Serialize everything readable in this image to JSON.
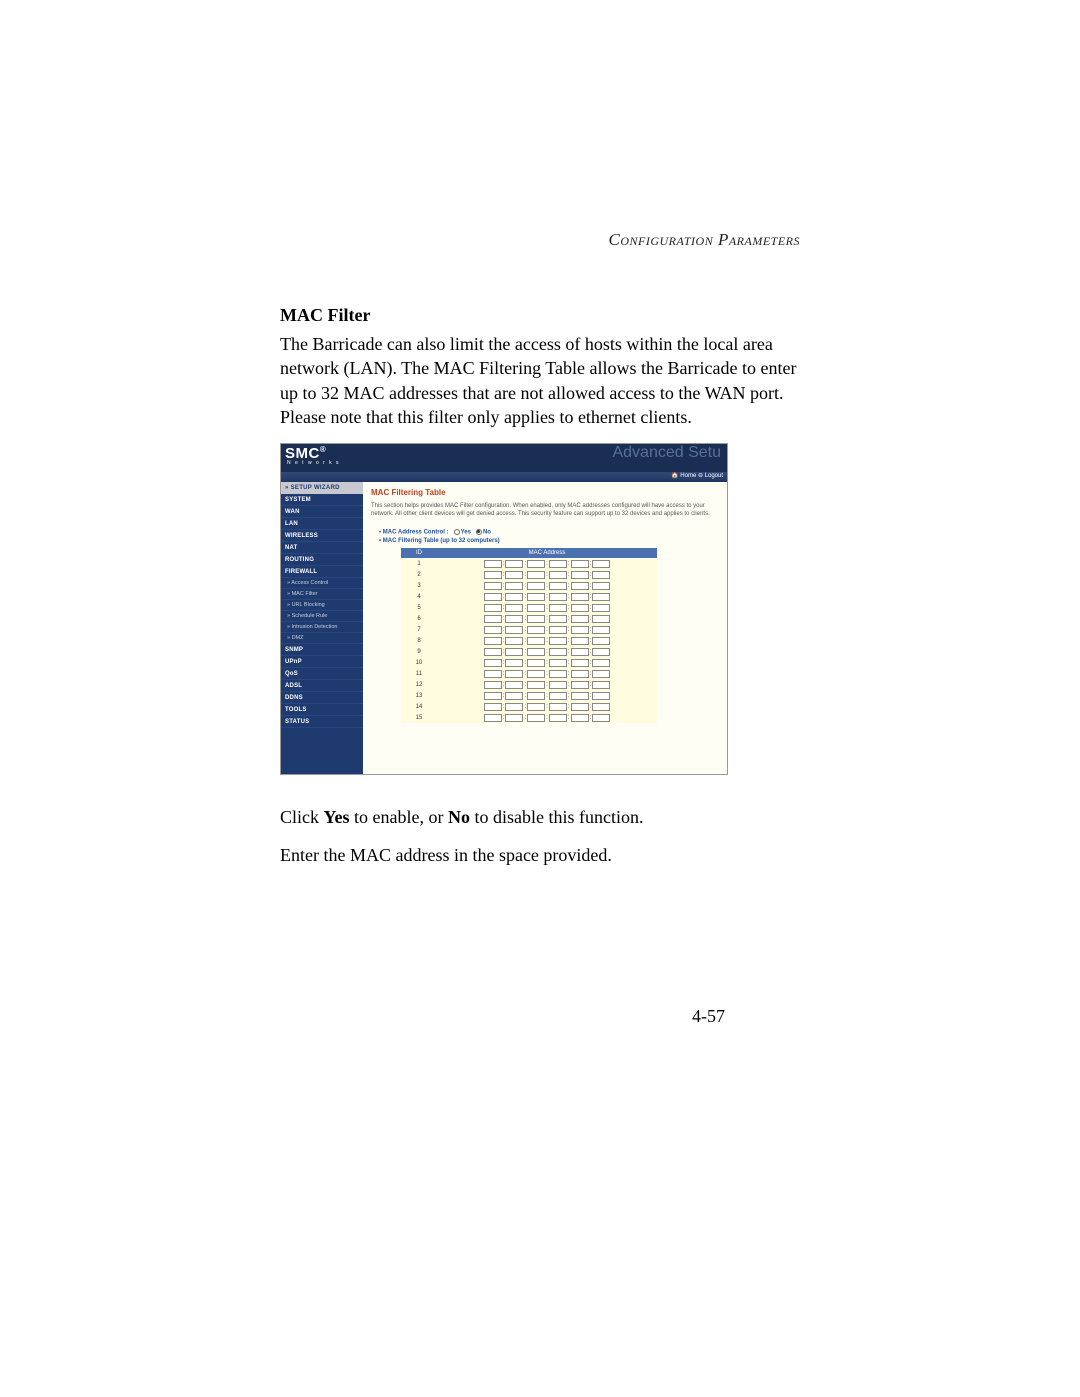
{
  "header": {
    "right": "Configuration Parameters"
  },
  "title": "MAC Filter",
  "para1": "The Barricade can also limit the access of hosts within the local area network (LAN). The MAC Filtering Table allows the Barricade to enter up to 32 MAC addresses that are not allowed access to the WAN port. Please note that this filter only applies to ethernet clients.",
  "screenshot": {
    "logo": "SMC",
    "logo_reg": "®",
    "logo_sub": "N e t w o r k s",
    "banner": "Advanced Setu",
    "home_logout": "🏠 Home  ⊖ Logout",
    "sidebar": {
      "setup": "» SETUP WIZARD",
      "main": [
        "SYSTEM",
        "WAN",
        "LAN",
        "WIRELESS",
        "NAT",
        "ROUTING",
        "FIREWALL"
      ],
      "subs": [
        "» Access Control",
        "» MAC Filter",
        "» URL Blocking",
        "» Schedule Rule",
        "» Intrusion Detection",
        "» DMZ"
      ],
      "rest": [
        "SNMP",
        "UPnP",
        "QoS",
        "ADSL",
        "DDNS",
        "TOOLS",
        "STATUS"
      ]
    },
    "content": {
      "title": "MAC Filtering Table",
      "desc": "This section helps provides MAC Filter configuration. When enabled, only MAC addresses configured will have access to your network. All other client devices will get denied access. This security feature can support up to 32 devices and applies to clients.",
      "bullet1_label": "MAC Address Control :",
      "radio_yes": "Yes",
      "radio_no": "No",
      "bullet2": "MAC Filtering Table (up to 32 computers)",
      "th_id": "ID",
      "th_mac": "MAC Address",
      "rows": [
        "1",
        "2",
        "3",
        "4",
        "5",
        "6",
        "7",
        "8",
        "9",
        "10",
        "11",
        "12",
        "13",
        "14",
        "15"
      ]
    }
  },
  "para2_pre": "Click ",
  "para2_yes": "Yes",
  "para2_mid": " to enable, or ",
  "para2_no": "No",
  "para2_post": " to disable this function.",
  "para3": "Enter the MAC address in the space provided.",
  "page_num": "4-57"
}
